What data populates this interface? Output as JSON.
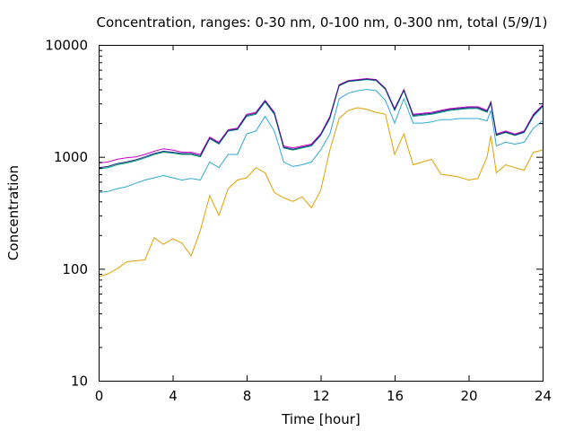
{
  "chart_data": {
    "type": "line",
    "title": "Concentration, ranges: 0-30 nm, 0-100 nm, 0-300 nm, total (5/9/1)",
    "xlabel": "Time [hour]",
    "ylabel": "Concentration",
    "xlim": [
      0,
      24
    ],
    "ylim": [
      10,
      10000
    ],
    "yscale": "log",
    "x_ticks": [
      0,
      4,
      8,
      12,
      16,
      20,
      24
    ],
    "y_ticks": [
      10,
      100,
      1000,
      10000
    ],
    "x_tick_labels": [
      "0",
      "4",
      "8",
      "12",
      "16",
      "20",
      "24"
    ],
    "y_tick_labels": [
      "10",
      "100",
      "1000",
      "10000"
    ],
    "grid": false,
    "legend": "none",
    "series": [
      {
        "color": "#e0a000",
        "points": [
          [
            0,
            85
          ],
          [
            0.5,
            90
          ],
          [
            1,
            100
          ],
          [
            1.5,
            115
          ],
          [
            2,
            118
          ],
          [
            2.5,
            120
          ],
          [
            3,
            190
          ],
          [
            3.5,
            165
          ],
          [
            4,
            185
          ],
          [
            4.5,
            170
          ],
          [
            5,
            130
          ],
          [
            5.5,
            220
          ],
          [
            6,
            450
          ],
          [
            6.5,
            300
          ],
          [
            7,
            520
          ],
          [
            7.5,
            620
          ],
          [
            8,
            650
          ],
          [
            8.5,
            800
          ],
          [
            9,
            720
          ],
          [
            9.5,
            480
          ],
          [
            10,
            430
          ],
          [
            10.5,
            400
          ],
          [
            11,
            440
          ],
          [
            11.5,
            350
          ],
          [
            12,
            500
          ],
          [
            12.5,
            1150
          ],
          [
            13,
            2200
          ],
          [
            13.5,
            2600
          ],
          [
            14,
            2750
          ],
          [
            14.5,
            2650
          ],
          [
            15,
            2500
          ],
          [
            15.5,
            2400
          ],
          [
            16,
            1050
          ],
          [
            16.5,
            1600
          ],
          [
            17,
            850
          ],
          [
            17.5,
            900
          ],
          [
            18,
            950
          ],
          [
            18.5,
            700
          ],
          [
            19,
            680
          ],
          [
            19.5,
            660
          ],
          [
            20,
            620
          ],
          [
            20.5,
            640
          ],
          [
            21,
            1000
          ],
          [
            21.2,
            1550
          ],
          [
            21.5,
            720
          ],
          [
            22,
            850
          ],
          [
            22.5,
            800
          ],
          [
            23,
            760
          ],
          [
            23.5,
            1100
          ],
          [
            24,
            1150
          ]
        ]
      },
      {
        "color": "#30a8d0",
        "points": [
          [
            0,
            480
          ],
          [
            0.5,
            490
          ],
          [
            1,
            520
          ],
          [
            1.5,
            540
          ],
          [
            2,
            580
          ],
          [
            2.5,
            620
          ],
          [
            3,
            650
          ],
          [
            3.5,
            680
          ],
          [
            4,
            650
          ],
          [
            4.5,
            620
          ],
          [
            5,
            640
          ],
          [
            5.5,
            620
          ],
          [
            6,
            900
          ],
          [
            6.5,
            800
          ],
          [
            7,
            1050
          ],
          [
            7.5,
            1050
          ],
          [
            8,
            1600
          ],
          [
            8.5,
            1700
          ],
          [
            9,
            2300
          ],
          [
            9.5,
            1700
          ],
          [
            10,
            900
          ],
          [
            10.5,
            820
          ],
          [
            11,
            850
          ],
          [
            11.5,
            900
          ],
          [
            12,
            1150
          ],
          [
            12.5,
            1600
          ],
          [
            13,
            3300
          ],
          [
            13.5,
            3700
          ],
          [
            14,
            3900
          ],
          [
            14.5,
            4000
          ],
          [
            15,
            3900
          ],
          [
            15.5,
            3200
          ],
          [
            16,
            2000
          ],
          [
            16.5,
            3300
          ],
          [
            17,
            2000
          ],
          [
            17.5,
            2000
          ],
          [
            18,
            2050
          ],
          [
            18.5,
            2150
          ],
          [
            19,
            2150
          ],
          [
            19.5,
            2200
          ],
          [
            20,
            2200
          ],
          [
            20.5,
            2200
          ],
          [
            21,
            2100
          ],
          [
            21.2,
            2600
          ],
          [
            21.5,
            1250
          ],
          [
            22,
            1350
          ],
          [
            22.5,
            1300
          ],
          [
            23,
            1350
          ],
          [
            23.5,
            1800
          ],
          [
            24,
            2100
          ]
        ]
      },
      {
        "color": "#009e73",
        "points": [
          [
            0,
            780
          ],
          [
            0.5,
            800
          ],
          [
            1,
            850
          ],
          [
            1.5,
            880
          ],
          [
            2,
            920
          ],
          [
            2.5,
            980
          ],
          [
            3,
            1050
          ],
          [
            3.5,
            1100
          ],
          [
            4,
            1080
          ],
          [
            4.5,
            1050
          ],
          [
            5,
            1050
          ],
          [
            5.5,
            1000
          ],
          [
            6,
            1450
          ],
          [
            6.5,
            1300
          ],
          [
            7,
            1700
          ],
          [
            7.5,
            1750
          ],
          [
            8,
            2300
          ],
          [
            8.5,
            2400
          ],
          [
            9,
            3100
          ],
          [
            9.5,
            2400
          ],
          [
            10,
            1200
          ],
          [
            10.5,
            1150
          ],
          [
            11,
            1200
          ],
          [
            11.5,
            1250
          ],
          [
            12,
            1550
          ],
          [
            12.5,
            2200
          ],
          [
            13,
            4300
          ],
          [
            13.5,
            4700
          ],
          [
            14,
            4800
          ],
          [
            14.5,
            4900
          ],
          [
            15,
            4800
          ],
          [
            15.5,
            4000
          ],
          [
            16,
            2600
          ],
          [
            16.5,
            3900
          ],
          [
            17,
            2300
          ],
          [
            17.5,
            2350
          ],
          [
            18,
            2400
          ],
          [
            18.5,
            2500
          ],
          [
            19,
            2600
          ],
          [
            19.5,
            2650
          ],
          [
            20,
            2700
          ],
          [
            20.5,
            2700
          ],
          [
            21,
            2500
          ],
          [
            21.2,
            3000
          ],
          [
            21.5,
            1550
          ],
          [
            22,
            1650
          ],
          [
            22.5,
            1550
          ],
          [
            23,
            1650
          ],
          [
            23.5,
            2300
          ],
          [
            24,
            2800
          ]
        ]
      },
      {
        "color": "#cc00cc",
        "points": [
          [
            0,
            880
          ],
          [
            0.5,
            900
          ],
          [
            1,
            950
          ],
          [
            1.5,
            980
          ],
          [
            2,
            1000
          ],
          [
            2.5,
            1050
          ],
          [
            3,
            1120
          ],
          [
            3.5,
            1180
          ],
          [
            4,
            1150
          ],
          [
            4.5,
            1100
          ],
          [
            5,
            1100
          ],
          [
            5.5,
            1050
          ],
          [
            6,
            1500
          ],
          [
            6.5,
            1350
          ],
          [
            7,
            1750
          ],
          [
            7.5,
            1800
          ],
          [
            8,
            2400
          ],
          [
            8.5,
            2500
          ],
          [
            9,
            3200
          ],
          [
            9.5,
            2500
          ],
          [
            10,
            1250
          ],
          [
            10.5,
            1200
          ],
          [
            11,
            1250
          ],
          [
            11.5,
            1300
          ],
          [
            12,
            1600
          ],
          [
            12.5,
            2300
          ],
          [
            13,
            4400
          ],
          [
            13.5,
            4800
          ],
          [
            14,
            4900
          ],
          [
            14.5,
            5000
          ],
          [
            15,
            4900
          ],
          [
            15.5,
            4100
          ],
          [
            16,
            2700
          ],
          [
            16.5,
            4000
          ],
          [
            17,
            2400
          ],
          [
            17.5,
            2450
          ],
          [
            18,
            2500
          ],
          [
            18.5,
            2600
          ],
          [
            19,
            2700
          ],
          [
            19.5,
            2750
          ],
          [
            20,
            2800
          ],
          [
            20.5,
            2800
          ],
          [
            21,
            2600
          ],
          [
            21.2,
            3100
          ],
          [
            21.5,
            1600
          ],
          [
            22,
            1700
          ],
          [
            22.5,
            1600
          ],
          [
            23,
            1700
          ],
          [
            23.5,
            2400
          ],
          [
            24,
            2900
          ]
        ]
      },
      {
        "color": "#1a2a80",
        "points": [
          [
            0,
            800
          ],
          [
            0.5,
            820
          ],
          [
            1,
            870
          ],
          [
            1.5,
            900
          ],
          [
            2,
            940
          ],
          [
            2.5,
            1000
          ],
          [
            3,
            1070
          ],
          [
            3.5,
            1120
          ],
          [
            4,
            1100
          ],
          [
            4.5,
            1070
          ],
          [
            5,
            1070
          ],
          [
            5.5,
            1020
          ],
          [
            6,
            1470
          ],
          [
            6.5,
            1320
          ],
          [
            7,
            1720
          ],
          [
            7.5,
            1770
          ],
          [
            8,
            2350
          ],
          [
            8.5,
            2450
          ],
          [
            9,
            3150
          ],
          [
            9.5,
            2450
          ],
          [
            10,
            1220
          ],
          [
            10.5,
            1170
          ],
          [
            11,
            1220
          ],
          [
            11.5,
            1270
          ],
          [
            12,
            1570
          ],
          [
            12.5,
            2250
          ],
          [
            13,
            4350
          ],
          [
            13.5,
            4750
          ],
          [
            14,
            4850
          ],
          [
            14.5,
            4950
          ],
          [
            15,
            4850
          ],
          [
            15.5,
            4050
          ],
          [
            16,
            2650
          ],
          [
            16.5,
            3950
          ],
          [
            17,
            2350
          ],
          [
            17.5,
            2400
          ],
          [
            18,
            2450
          ],
          [
            18.5,
            2550
          ],
          [
            19,
            2650
          ],
          [
            19.5,
            2700
          ],
          [
            20,
            2750
          ],
          [
            20.5,
            2750
          ],
          [
            21,
            2550
          ],
          [
            21.2,
            3050
          ],
          [
            21.5,
            1570
          ],
          [
            22,
            1670
          ],
          [
            22.5,
            1570
          ],
          [
            23,
            1670
          ],
          [
            23.5,
            2350
          ],
          [
            24,
            2850
          ]
        ]
      }
    ]
  }
}
